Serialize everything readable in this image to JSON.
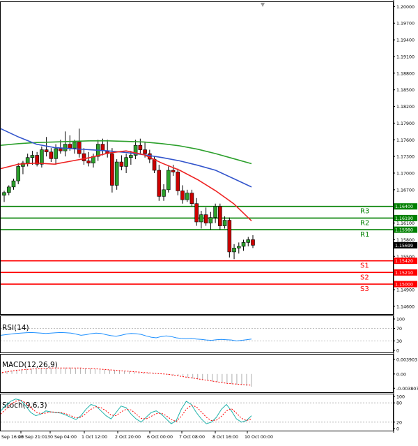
{
  "chart_data": {
    "type": "candlestick",
    "symbol_marker": "▼",
    "price_panel": {
      "ylim": [
        1.1446,
        1.2008
      ],
      "yticks": [
        "1.20000",
        "1.19700",
        "1.19400",
        "1.19100",
        "1.18800",
        "1.18500",
        "1.18200",
        "1.17900",
        "1.17600",
        "1.17300",
        "1.17000",
        "1.16700",
        "1.16400",
        "1.16100",
        "1.15800",
        "1.15500",
        "1.15200",
        "1.14900",
        "1.14600"
      ],
      "current_price": "1.15699",
      "current_price_color": "#ffffff",
      "candles": [
        {
          "o": 1.166,
          "h": 1.1668,
          "l": 1.1648,
          "c": 1.1665
        },
        {
          "o": 1.1665,
          "h": 1.1678,
          "l": 1.166,
          "c": 1.1675
        },
        {
          "o": 1.1675,
          "h": 1.169,
          "l": 1.167,
          "c": 1.1686
        },
        {
          "o": 1.1686,
          "h": 1.1718,
          "l": 1.168,
          "c": 1.1712
        },
        {
          "o": 1.1712,
          "h": 1.1722,
          "l": 1.1698,
          "c": 1.1718
        },
        {
          "o": 1.1718,
          "h": 1.1735,
          "l": 1.1712,
          "c": 1.1728
        },
        {
          "o": 1.1728,
          "h": 1.174,
          "l": 1.1715,
          "c": 1.1732
        },
        {
          "o": 1.1732,
          "h": 1.1738,
          "l": 1.1712,
          "c": 1.1716
        },
        {
          "o": 1.1716,
          "h": 1.1748,
          "l": 1.171,
          "c": 1.1742
        },
        {
          "o": 1.1742,
          "h": 1.1765,
          "l": 1.173,
          "c": 1.1738
        },
        {
          "o": 1.1738,
          "h": 1.1745,
          "l": 1.172,
          "c": 1.1726
        },
        {
          "o": 1.1726,
          "h": 1.1752,
          "l": 1.1715,
          "c": 1.1744
        },
        {
          "o": 1.1744,
          "h": 1.176,
          "l": 1.1735,
          "c": 1.174
        },
        {
          "o": 1.174,
          "h": 1.1775,
          "l": 1.173,
          "c": 1.1752
        },
        {
          "o": 1.1752,
          "h": 1.1768,
          "l": 1.174,
          "c": 1.1745
        },
        {
          "o": 1.1745,
          "h": 1.176,
          "l": 1.1735,
          "c": 1.1756
        },
        {
          "o": 1.1756,
          "h": 1.178,
          "l": 1.1728,
          "c": 1.1735
        },
        {
          "o": 1.1735,
          "h": 1.1745,
          "l": 1.1715,
          "c": 1.1722
        },
        {
          "o": 1.1722,
          "h": 1.1738,
          "l": 1.1712,
          "c": 1.1718
        },
        {
          "o": 1.1718,
          "h": 1.1735,
          "l": 1.171,
          "c": 1.173
        },
        {
          "o": 1.173,
          "h": 1.176,
          "l": 1.1722,
          "c": 1.1752
        },
        {
          "o": 1.1752,
          "h": 1.1762,
          "l": 1.1732,
          "c": 1.174
        },
        {
          "o": 1.174,
          "h": 1.176,
          "l": 1.1728,
          "c": 1.1735
        },
        {
          "o": 1.1735,
          "h": 1.1745,
          "l": 1.1665,
          "c": 1.1678
        },
        {
          "o": 1.1678,
          "h": 1.1725,
          "l": 1.167,
          "c": 1.172
        },
        {
          "o": 1.172,
          "h": 1.1732,
          "l": 1.1705,
          "c": 1.1712
        },
        {
          "o": 1.1712,
          "h": 1.1735,
          "l": 1.17,
          "c": 1.1728
        },
        {
          "o": 1.1728,
          "h": 1.174,
          "l": 1.1715,
          "c": 1.1732
        },
        {
          "o": 1.1732,
          "h": 1.176,
          "l": 1.1725,
          "c": 1.175
        },
        {
          "o": 1.175,
          "h": 1.1762,
          "l": 1.1735,
          "c": 1.1742
        },
        {
          "o": 1.1742,
          "h": 1.1755,
          "l": 1.1728,
          "c": 1.1735
        },
        {
          "o": 1.1735,
          "h": 1.1742,
          "l": 1.1718,
          "c": 1.1725
        },
        {
          "o": 1.1725,
          "h": 1.173,
          "l": 1.17,
          "c": 1.1705
        },
        {
          "o": 1.1705,
          "h": 1.1715,
          "l": 1.165,
          "c": 1.1658
        },
        {
          "o": 1.1658,
          "h": 1.168,
          "l": 1.165,
          "c": 1.167
        },
        {
          "o": 1.167,
          "h": 1.1712,
          "l": 1.1665,
          "c": 1.1705
        },
        {
          "o": 1.1705,
          "h": 1.1715,
          "l": 1.1695,
          "c": 1.1702
        },
        {
          "o": 1.1702,
          "h": 1.1708,
          "l": 1.166,
          "c": 1.1668
        },
        {
          "o": 1.1668,
          "h": 1.1678,
          "l": 1.1645,
          "c": 1.1652
        },
        {
          "o": 1.1652,
          "h": 1.167,
          "l": 1.1648,
          "c": 1.1664
        },
        {
          "o": 1.1664,
          "h": 1.167,
          "l": 1.164,
          "c": 1.1645
        },
        {
          "o": 1.1645,
          "h": 1.1655,
          "l": 1.1605,
          "c": 1.1612
        },
        {
          "o": 1.1612,
          "h": 1.1632,
          "l": 1.16,
          "c": 1.1625
        },
        {
          "o": 1.1625,
          "h": 1.1638,
          "l": 1.1605,
          "c": 1.161
        },
        {
          "o": 1.161,
          "h": 1.163,
          "l": 1.1598,
          "c": 1.162
        },
        {
          "o": 1.162,
          "h": 1.1645,
          "l": 1.161,
          "c": 1.164
        },
        {
          "o": 1.164,
          "h": 1.1645,
          "l": 1.1598,
          "c": 1.1605
        },
        {
          "o": 1.1605,
          "h": 1.1622,
          "l": 1.16,
          "c": 1.1615
        },
        {
          "o": 1.1615,
          "h": 1.162,
          "l": 1.1548,
          "c": 1.1558
        },
        {
          "o": 1.1558,
          "h": 1.1572,
          "l": 1.1545,
          "c": 1.1565
        },
        {
          "o": 1.1565,
          "h": 1.1575,
          "l": 1.1555,
          "c": 1.1568
        },
        {
          "o": 1.1568,
          "h": 1.158,
          "l": 1.156,
          "c": 1.1575
        },
        {
          "o": 1.1575,
          "h": 1.1585,
          "l": 1.1568,
          "c": 1.158
        },
        {
          "o": 1.158,
          "h": 1.1588,
          "l": 1.1565,
          "c": 1.157
        }
      ],
      "moving_averages": [
        {
          "color": "#2ca02c",
          "values": [
            1.175,
            1.1753,
            1.1755,
            1.1756,
            1.1757,
            1.1758,
            1.1758,
            1.1757,
            1.1756,
            1.1753,
            1.1749,
            1.1743,
            1.1735,
            1.1726,
            1.1717
          ]
        },
        {
          "color": "#3355cc",
          "values": [
            1.178,
            1.1765,
            1.1752,
            1.1746,
            1.1744,
            1.1742,
            1.174,
            1.1737,
            1.1733,
            1.1728,
            1.1722,
            1.1714,
            1.1705,
            1.169,
            1.1675
          ]
        },
        {
          "color": "#ee2222",
          "values": [
            1.1708,
            1.1716,
            1.1718,
            1.1716,
            1.1722,
            1.1728,
            1.1736,
            1.174,
            1.1733,
            1.1718,
            1.1705,
            1.1688,
            1.1668,
            1.1645,
            1.1614
          ]
        }
      ],
      "levels": [
        {
          "name": "R3",
          "value": 1.164,
          "label": "1.16400",
          "color": "#008000"
        },
        {
          "name": "R2",
          "value": 1.1619,
          "label": "1.16190",
          "color": "#008000"
        },
        {
          "name": "R1",
          "value": 1.1598,
          "label": "1.15980",
          "color": "#008000"
        },
        {
          "name": "S1",
          "value": 1.1542,
          "label": "1.15420",
          "color": "#ff0000"
        },
        {
          "name": "S2",
          "value": 1.1521,
          "label": "1.15210",
          "color": "#ff0000"
        },
        {
          "name": "S3",
          "value": 1.15,
          "label": "1.15000",
          "color": "#ff0000"
        }
      ]
    },
    "rsi_panel": {
      "label": "RSI(14)",
      "ylim": [
        0,
        100
      ],
      "yticks": [
        "100",
        "70",
        "30",
        "0"
      ],
      "levels": [
        70,
        30
      ],
      "values": [
        48,
        50,
        52,
        54,
        55,
        56,
        57,
        56,
        55,
        54,
        55,
        56,
        57,
        56,
        55,
        52,
        48,
        50,
        53,
        55,
        54,
        50,
        47,
        45,
        48,
        52,
        54,
        53,
        51,
        46,
        42,
        40,
        44,
        46,
        44,
        40,
        38,
        37,
        38,
        36,
        35,
        33,
        32,
        34,
        35,
        34,
        33,
        30,
        32,
        34,
        36
      ]
    },
    "macd_panel": {
      "label": "MACD(12,26,9)",
      "ylim": [
        -0.0045,
        0.0048
      ],
      "yticks": [
        "0.003903",
        "0.00",
        "-0.003807"
      ],
      "histogram": [
        0.0005,
        0.0007,
        0.0009,
        0.0011,
        0.0012,
        0.0013,
        0.0014,
        0.0015,
        0.0015,
        0.0016,
        0.0016,
        0.0016,
        0.0017,
        0.0017,
        0.0017,
        0.0016,
        0.0016,
        0.0015,
        0.0015,
        0.0014,
        0.0013,
        0.0012,
        0.0011,
        0.001,
        0.0009,
        0.0008,
        0.0007,
        0.0006,
        0.0005,
        0.0004,
        0.0003,
        0.0002,
        0.0001,
        0.0,
        -0.0002,
        -0.0004,
        -0.0006,
        -0.0008,
        -0.001,
        -0.0012,
        -0.0014,
        -0.0016,
        -0.0018,
        -0.002,
        -0.0022,
        -0.0024,
        -0.0026,
        -0.0027,
        -0.0028,
        -0.003,
        -0.0032,
        -0.0034
      ],
      "signal": [
        0.0004,
        0.0006,
        0.0008,
        0.001,
        0.0011,
        0.0012,
        0.0013,
        0.0014,
        0.0015,
        0.0015,
        0.0016,
        0.0016,
        0.0016,
        0.0016,
        0.0016,
        0.0016,
        0.0016,
        0.0015,
        0.0015,
        0.0014,
        0.0013,
        0.0012,
        0.0011,
        0.001,
        0.0009,
        0.0008,
        0.0007,
        0.0006,
        0.0005,
        0.0004,
        0.0003,
        0.0002,
        0.0001,
        0.0,
        -0.0001,
        -0.0003,
        -0.0005,
        -0.0007,
        -0.0009,
        -0.0011,
        -0.0013,
        -0.0015,
        -0.0017,
        -0.0019,
        -0.0021,
        -0.0023,
        -0.0025,
        -0.0026,
        -0.0027,
        -0.0028,
        -0.0029,
        -0.003
      ]
    },
    "stoch_panel": {
      "label": "Stoch(9,6,3)",
      "ylim": [
        0,
        100
      ],
      "yticks": [
        "100",
        "80",
        "20",
        "0"
      ],
      "levels": [
        80,
        20
      ],
      "main": [
        55,
        72,
        85,
        92,
        88,
        70,
        50,
        40,
        45,
        55,
        52,
        50,
        48,
        42,
        35,
        28,
        40,
        60,
        75,
        70,
        55,
        40,
        30,
        50,
        70,
        65,
        45,
        30,
        20,
        35,
        50,
        55,
        45,
        30,
        15,
        25,
        60,
        85,
        75,
        50,
        30,
        15,
        20,
        35,
        60,
        75,
        55,
        30,
        20,
        25,
        40
      ],
      "signal": [
        45,
        60,
        75,
        85,
        88,
        80,
        65,
        52,
        46,
        48,
        52,
        51,
        50,
        46,
        40,
        33,
        35,
        47,
        60,
        68,
        65,
        55,
        42,
        40,
        52,
        60,
        58,
        45,
        32,
        30,
        38,
        46,
        48,
        40,
        28,
        22,
        38,
        60,
        72,
        68,
        52,
        35,
        25,
        26,
        38,
        55,
        62,
        48,
        32,
        25,
        30
      ]
    },
    "time_labels": [
      "26 Sep 16:00",
      "28 Sep 21:01",
      "30 Sep 04:00",
      "1 Oct 12:00",
      "2 Oct 20:00",
      "6 Oct 00:00",
      "7 Oct 08:00",
      "8 Oct 16:00",
      "10 Oct 00:00"
    ]
  }
}
